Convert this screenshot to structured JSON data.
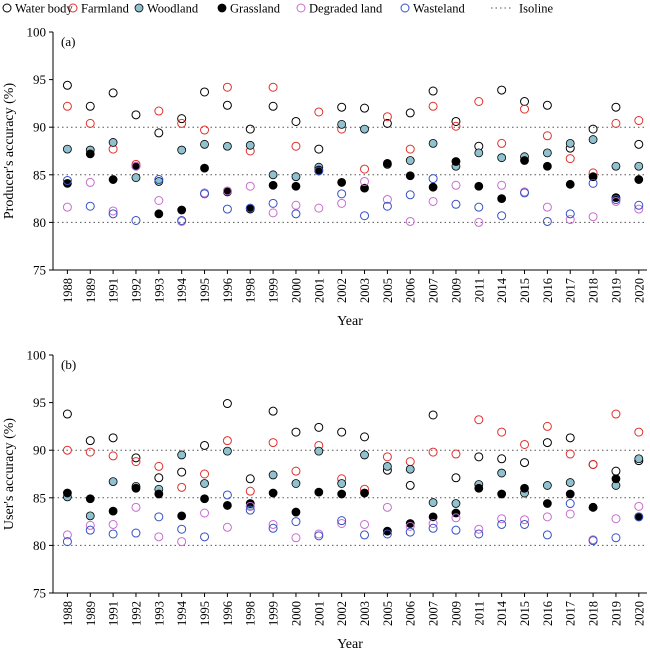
{
  "legend": {
    "items": [
      {
        "label": "Water body",
        "marker": "open",
        "color": "#000000"
      },
      {
        "label": "Farmland",
        "marker": "open",
        "color": "#e0302c"
      },
      {
        "label": "Woodland",
        "marker": "filled",
        "color": "#8fc1cf"
      },
      {
        "label": "Grassland",
        "marker": "filled",
        "color": "#000000"
      },
      {
        "label": "Degraded land",
        "marker": "open",
        "color": "#c86ccf"
      },
      {
        "label": "Wasteland",
        "marker": "open",
        "color": "#3451c6"
      },
      {
        "label": "Isoline",
        "marker": "dotted-line",
        "color": "#555555"
      }
    ]
  },
  "chart_data": [
    {
      "type": "scatter",
      "panel_label": "(a)",
      "ylabel": "Producer's accuracy (%)",
      "xlabel": "Year",
      "ylim": [
        75,
        100
      ],
      "yticks": [
        75,
        80,
        85,
        90,
        95,
        100
      ],
      "isolines": [
        80,
        85,
        90
      ],
      "categories": [
        "1988",
        "1989",
        "1991",
        "1992",
        "1993",
        "1994",
        "1995",
        "1996",
        "1998",
        "1999",
        "2000",
        "2001",
        "2002",
        "2003",
        "2005",
        "2006",
        "2007",
        "2009",
        "2011",
        "2014",
        "2015",
        "2016",
        "2017",
        "2018",
        "2019",
        "2020"
      ],
      "series": [
        {
          "name": "Water body",
          "values": [
            94.4,
            92.2,
            93.6,
            91.3,
            89.4,
            90.9,
            93.7,
            92.3,
            89.8,
            92.2,
            90.6,
            87.7,
            92.1,
            92.0,
            90.4,
            91.5,
            93.8,
            90.6,
            88.0,
            93.9,
            92.7,
            92.3,
            87.8,
            89.8,
            92.1,
            88.2
          ]
        },
        {
          "name": "Farmland",
          "values": [
            92.2,
            90.4,
            87.7,
            86.1,
            91.7,
            90.4,
            89.7,
            94.2,
            87.5,
            94.2,
            88.0,
            91.6,
            89.8,
            85.6,
            91.1,
            87.7,
            92.2,
            90.1,
            92.7,
            88.3,
            91.9,
            89.1,
            86.7,
            85.2,
            90.4,
            90.7
          ]
        },
        {
          "name": "Woodland",
          "values": [
            87.7,
            87.6,
            88.4,
            84.7,
            84.3,
            87.6,
            88.2,
            88.0,
            88.1,
            85.0,
            84.8,
            85.8,
            90.3,
            89.8,
            86.1,
            86.5,
            88.3,
            85.9,
            87.3,
            86.8,
            86.9,
            87.3,
            88.3,
            88.7,
            85.9,
            85.9
          ]
        },
        {
          "name": "Grassland",
          "values": [
            84.1,
            87.2,
            84.5,
            85.9,
            80.9,
            81.3,
            85.7,
            83.2,
            81.4,
            83.9,
            83.8,
            85.5,
            84.2,
            83.6,
            86.2,
            84.9,
            83.7,
            86.4,
            83.8,
            82.5,
            86.5,
            85.9,
            84.0,
            84.8,
            82.6,
            84.5
          ]
        },
        {
          "name": "Degraded land",
          "values": [
            81.6,
            84.2,
            81.2,
            85.9,
            82.3,
            80.1,
            83.1,
            83.3,
            83.8,
            81.0,
            81.8,
            81.5,
            82.0,
            84.3,
            82.4,
            80.1,
            82.2,
            83.9,
            80.0,
            83.9,
            83.2,
            81.6,
            80.3,
            80.6,
            82.2,
            81.4
          ]
        },
        {
          "name": "Wasteland",
          "values": [
            84.4,
            81.7,
            80.9,
            80.2,
            84.5,
            80.2,
            83.0,
            81.4,
            81.5,
            82.0,
            80.9,
            85.4,
            83.0,
            80.7,
            81.7,
            82.9,
            84.6,
            81.9,
            81.6,
            80.7,
            83.1,
            80.1,
            80.9,
            84.1,
            82.4,
            81.8
          ]
        }
      ]
    },
    {
      "type": "scatter",
      "panel_label": "(b)",
      "ylabel": "User's accuracy (%)",
      "xlabel": "Year",
      "ylim": [
        75,
        100
      ],
      "yticks": [
        75,
        80,
        85,
        90,
        95,
        100
      ],
      "isolines": [
        80,
        85,
        90
      ],
      "categories": [
        "1988",
        "1989",
        "1991",
        "1992",
        "1993",
        "1994",
        "1995",
        "1996",
        "1998",
        "1999",
        "2000",
        "2001",
        "2002",
        "2003",
        "2005",
        "2006",
        "2007",
        "2009",
        "2011",
        "2014",
        "2015",
        "2016",
        "2017",
        "2018",
        "2019",
        "2020"
      ],
      "series": [
        {
          "name": "Water body",
          "values": [
            93.8,
            91.0,
            91.3,
            89.2,
            87.1,
            87.7,
            90.5,
            94.9,
            87.0,
            94.1,
            91.9,
            92.4,
            91.9,
            91.4,
            87.9,
            86.3,
            93.7,
            87.1,
            89.3,
            89.1,
            88.7,
            90.8,
            91.3,
            88.5,
            87.8,
            88.9
          ]
        },
        {
          "name": "Farmland",
          "values": [
            90.0,
            89.8,
            89.4,
            88.8,
            88.3,
            86.1,
            87.5,
            91.0,
            85.7,
            90.8,
            87.8,
            90.5,
            87.0,
            85.9,
            89.3,
            88.8,
            89.8,
            89.6,
            93.2,
            91.9,
            90.6,
            92.5,
            89.6,
            88.5,
            93.8,
            91.9
          ]
        },
        {
          "name": "Woodland",
          "values": [
            85.1,
            83.1,
            86.7,
            86.2,
            85.9,
            89.5,
            86.5,
            89.9,
            84.1,
            87.4,
            86.5,
            89.9,
            86.5,
            89.5,
            88.3,
            88.0,
            84.5,
            84.4,
            86.4,
            87.6,
            85.5,
            86.3,
            86.6,
            84.0,
            86.3,
            89.1
          ]
        },
        {
          "name": "Grassland",
          "values": [
            85.5,
            84.9,
            83.6,
            86.0,
            85.4,
            83.1,
            84.9,
            84.2,
            84.4,
            85.5,
            83.5,
            85.6,
            85.4,
            85.5,
            81.5,
            82.3,
            83.0,
            83.4,
            86.0,
            85.4,
            86.0,
            84.4,
            85.4,
            84.0,
            87.0,
            83.0
          ]
        },
        {
          "name": "Degraded land",
          "values": [
            81.1,
            82.1,
            82.2,
            84.0,
            80.9,
            80.4,
            83.4,
            81.9,
            84.1,
            82.2,
            80.8,
            81.2,
            82.3,
            82.2,
            84.0,
            82.0,
            82.3,
            82.9,
            81.7,
            82.8,
            82.7,
            83.0,
            83.3,
            80.6,
            82.8,
            84.1
          ]
        },
        {
          "name": "Wasteland",
          "values": [
            80.4,
            81.6,
            81.2,
            81.3,
            83.0,
            81.7,
            80.9,
            85.3,
            83.7,
            81.8,
            82.5,
            81.0,
            82.6,
            81.1,
            81.2,
            81.4,
            81.8,
            81.6,
            81.2,
            82.2,
            82.2,
            81.1,
            84.4,
            80.5,
            80.8,
            83.0
          ]
        }
      ]
    }
  ]
}
